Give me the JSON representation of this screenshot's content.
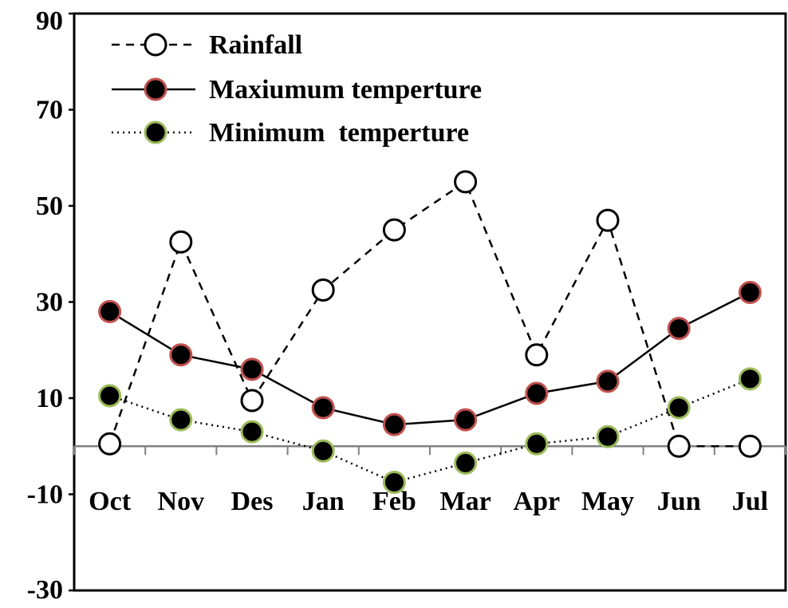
{
  "chart_data": {
    "type": "line",
    "categories": [
      "Oct",
      "Nov",
      "Des",
      "Jan",
      "Feb",
      "Mar",
      "Apr",
      "May",
      "Jun",
      "Jul"
    ],
    "ylim": [
      -30,
      90
    ],
    "yticks": [
      -30,
      -10,
      10,
      30,
      50,
      70,
      90
    ],
    "grid": false,
    "legend_position": "top-left",
    "series": [
      {
        "name": "Rainfall",
        "values": [
          0.5,
          42.5,
          9.5,
          32.5,
          45,
          55,
          19,
          47,
          0,
          0
        ],
        "line_style": "dashed",
        "marker_fill": "#ffffff",
        "marker_stroke": "#000000"
      },
      {
        "name": "Maxiumum temperture",
        "values": [
          28,
          19,
          16,
          8,
          4.5,
          5.5,
          11,
          13.5,
          24.5,
          32
        ],
        "line_style": "solid",
        "marker_fill": "#000000",
        "marker_stroke": "#c0504d"
      },
      {
        "name": "Minimum  temperture",
        "values": [
          10.5,
          5.5,
          3,
          -1,
          -7.5,
          -3.5,
          0.5,
          2,
          8,
          14
        ],
        "line_style": "dotted",
        "marker_fill": "#000000",
        "marker_stroke": "#9bbb59"
      }
    ]
  }
}
